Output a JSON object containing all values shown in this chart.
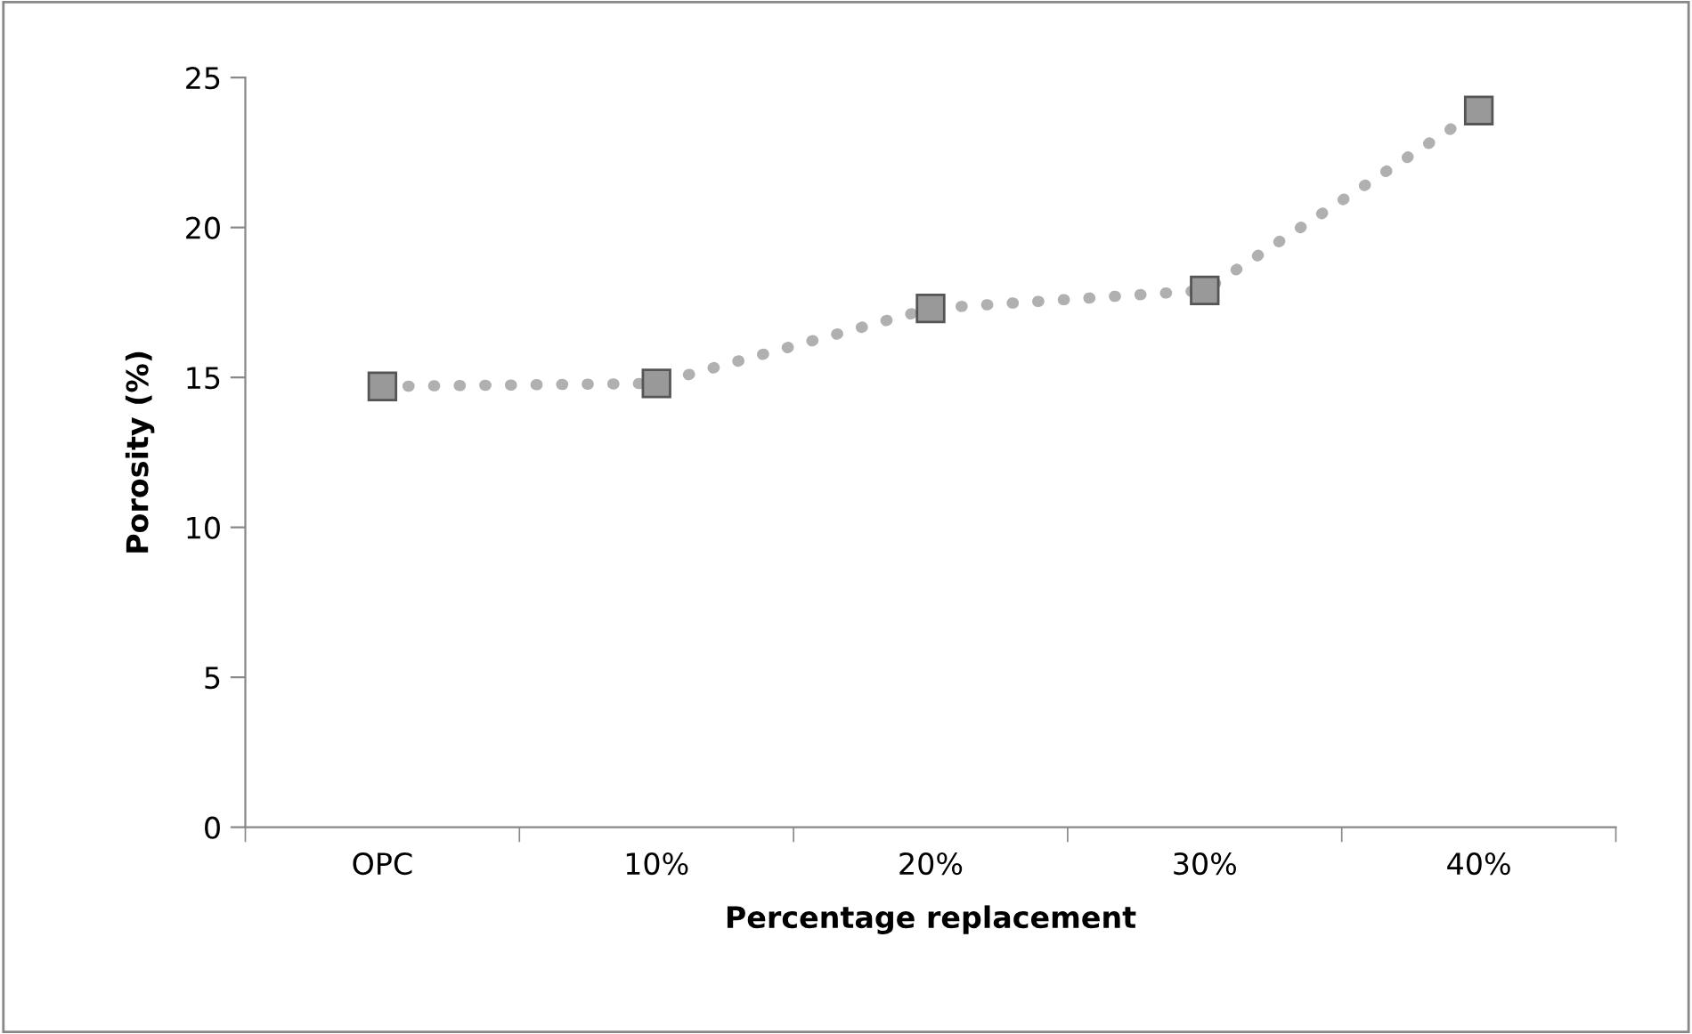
{
  "chart_data": {
    "type": "line",
    "xlabel": "Percentage replacement",
    "ylabel": "Porosity (%)",
    "categories": [
      "OPC",
      "10%",
      "20%",
      "30%",
      "40%"
    ],
    "series": [
      {
        "color": "#b0b0b0",
        "values": [
          14.7,
          14.8,
          17.3,
          17.9,
          23.9
        ]
      }
    ],
    "ylim": [
      0,
      25
    ],
    "yticks": [
      0,
      5,
      10,
      15,
      20,
      25
    ],
    "grid": false,
    "marker": "square",
    "line_style": "dotted"
  }
}
